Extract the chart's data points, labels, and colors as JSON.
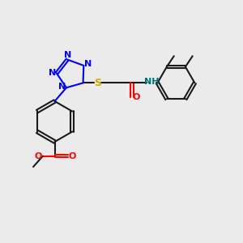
{
  "bg_color": "#ebebeb",
  "bond_color": "#1a1a1a",
  "N_color": "#0000ff",
  "S_color": "#ccaa00",
  "O_color": "#ff0000",
  "NH_color": "#007070",
  "bond_width": 1.5,
  "figsize": [
    3.0,
    3.0
  ],
  "dpi": 100,
  "xlim": [
    0,
    10
  ],
  "ylim": [
    0,
    10
  ]
}
